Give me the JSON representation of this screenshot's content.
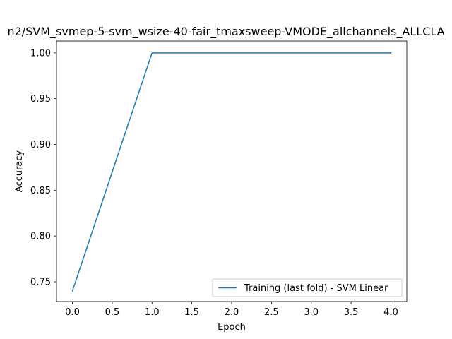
{
  "chart_data": {
    "type": "line",
    "title": "n2/SVM_svmep-5-svm_wsize-40-fair_tmaxsweep-VMODE_allchannels_ALLCLA",
    "xlabel": "Epoch",
    "ylabel": "Accuracy",
    "xlim": [
      -0.2,
      4.2
    ],
    "ylim": [
      0.7284,
      1.013
    ],
    "xticks": [
      0.0,
      0.5,
      1.0,
      1.5,
      2.0,
      2.5,
      3.0,
      3.5,
      4.0
    ],
    "xtick_labels": [
      "0.0",
      "0.5",
      "1.0",
      "1.5",
      "2.0",
      "2.5",
      "3.0",
      "3.5",
      "4.0"
    ],
    "yticks": [
      0.75,
      0.8,
      0.85,
      0.9,
      0.95,
      1.0
    ],
    "ytick_labels": [
      "0.75",
      "0.80",
      "0.85",
      "0.90",
      "0.95",
      "1.00"
    ],
    "grid": false,
    "legend_position": "lower-right",
    "x": [
      0,
      1,
      2,
      3,
      4
    ],
    "series": [
      {
        "name": "Training (last fold) - SVM Linear",
        "color": "#1f77b4",
        "values": [
          0.74,
          1.0,
          1.0,
          1.0,
          1.0
        ]
      }
    ]
  }
}
